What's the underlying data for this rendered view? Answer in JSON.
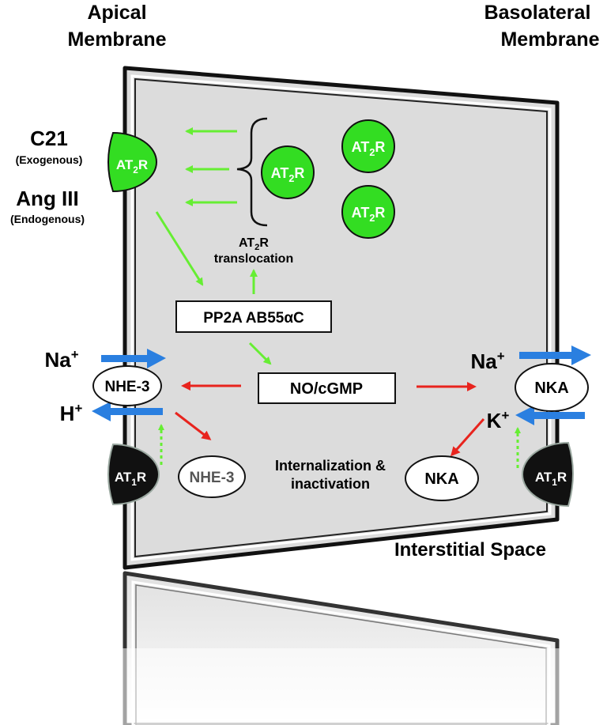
{
  "labels": {
    "apical_line1": "Apical",
    "apical_line2": "Membrane",
    "basolateral_line1": "Basolateral",
    "basolateral_line2": "Membrane",
    "interstitial": "Interstitial Space",
    "c21": "C21",
    "c21_note": "(Exogenous)",
    "ang3": "Ang III",
    "ang3_note": "(Endogenous)",
    "translocation_line1_prefix": "AT",
    "translocation_line1_sub": "2",
    "translocation_line1_suffix": "R",
    "translocation_line2": "translocation",
    "pp2a": "PP2A AB55αC",
    "no_cgmp": "NO/cGMP",
    "internalization_line1": "Internalization &",
    "internalization_line2": "inactivation",
    "na_left": "Na",
    "na_left_charge": "+",
    "h_left": "H",
    "h_left_charge": "+",
    "na_right": "Na",
    "na_right_charge": "+",
    "k_right": "K",
    "k_right_charge": "+"
  },
  "receptors": {
    "at2_prefix": "AT",
    "at2_sub": "2",
    "at2_suffix": "R",
    "at1_prefix": "AT",
    "at1_sub": "1",
    "at1_suffix": "R"
  },
  "transporters": {
    "nhe3_membrane": "NHE-3",
    "nhe3_internal": "NHE-3",
    "nka_membrane": "NKA",
    "nka_internal": "NKA"
  },
  "colors": {
    "green": "#33dd22",
    "arrow_green": "#66ee33",
    "red": "#e8241e",
    "blue": "#2a7fe0",
    "cell_fill": "#dcdcdc",
    "outline": "#111111"
  }
}
